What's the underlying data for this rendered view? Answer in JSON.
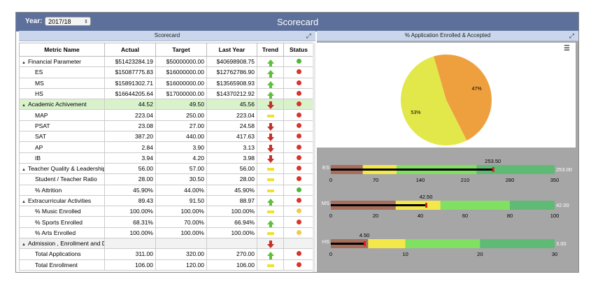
{
  "header": {
    "year_label": "Year:",
    "year_value": "2017/18",
    "title": "Scorecard"
  },
  "left_panel": {
    "title": "Scorecard"
  },
  "right_panel": {
    "title": "% Application Enrolled & Accepted"
  },
  "table": {
    "columns": [
      "Metric Name",
      "Actual",
      "Target",
      "Last Year",
      "Trend",
      "Status"
    ],
    "rows": [
      {
        "name": "Financial Parameter",
        "group": true,
        "actual": "$51423284.19",
        "target": "$50000000.00",
        "last": "$40698908.75",
        "trend": "up",
        "status": "green"
      },
      {
        "name": "ES",
        "actual": "$15087775.83",
        "target": "$16000000.00",
        "last": "$12762786.90",
        "trend": "up",
        "status": "red"
      },
      {
        "name": "MS",
        "actual": "$15891302.71",
        "target": "$16000000.00",
        "last": "$13565908.93",
        "trend": "up",
        "status": "red"
      },
      {
        "name": "HS",
        "actual": "$16644205.64",
        "target": "$17000000.00",
        "last": "$14370212.92",
        "trend": "up",
        "status": "red"
      },
      {
        "name": "Academic Achivement",
        "group": true,
        "highlight": true,
        "actual": "44.52",
        "target": "49.50",
        "last": "45.56",
        "trend": "down",
        "status": "red"
      },
      {
        "name": "MAP",
        "actual": "223.04",
        "target": "250.00",
        "last": "223.04",
        "trend": "flat",
        "status": "red"
      },
      {
        "name": "PSAT",
        "actual": "23.08",
        "target": "27.00",
        "last": "24.58",
        "trend": "down",
        "status": "red"
      },
      {
        "name": "SAT",
        "actual": "387.20",
        "target": "440.00",
        "last": "417.63",
        "trend": "down",
        "status": "red"
      },
      {
        "name": "AP",
        "actual": "2.84",
        "target": "3.90",
        "last": "3.13",
        "trend": "down",
        "status": "red"
      },
      {
        "name": "IB",
        "actual": "3.94",
        "target": "4.20",
        "last": "3.98",
        "trend": "down",
        "status": "red"
      },
      {
        "name": "Teacher Quality & Leadership",
        "group": true,
        "actual": "56.00",
        "target": "57.00",
        "last": "56.00",
        "trend": "flat",
        "status": "red"
      },
      {
        "name": "Student / Teacher Ratio",
        "actual": "28.00",
        "target": "30.50",
        "last": "28.00",
        "trend": "flat",
        "status": "red"
      },
      {
        "name": "% Attrition",
        "actual": "45.90%",
        "target": "44.00%",
        "last": "45.90%",
        "trend": "flat",
        "status": "green"
      },
      {
        "name": "Extracurricular Activities",
        "group": true,
        "actual": "89.43",
        "target": "91.50",
        "last": "88.97",
        "trend": "up",
        "status": "red"
      },
      {
        "name": "% Music Enrolled",
        "actual": "100.00%",
        "target": "100.00%",
        "last": "100.00%",
        "trend": "flat",
        "status": "yellow"
      },
      {
        "name": "% Sports Enrolled",
        "actual": "68.31%",
        "target": "70.00%",
        "last": "66.94%",
        "trend": "up",
        "status": "red"
      },
      {
        "name": "% Arts Enrolled",
        "actual": "100.00%",
        "target": "100.00%",
        "last": "100.00%",
        "trend": "flat",
        "status": "yellow"
      },
      {
        "name": "Admission , Enrollment and D",
        "group": true,
        "grey": true,
        "actual": "",
        "target": "",
        "last": "",
        "trend": "down",
        "status": ""
      },
      {
        "name": "Total Applications",
        "actual": "311.00",
        "target": "320.00",
        "last": "270.00",
        "trend": "up",
        "status": "red"
      },
      {
        "name": "Total Enrollment",
        "actual": "106.00",
        "target": "120.00",
        "last": "106.00",
        "trend": "flat",
        "status": "red"
      }
    ]
  },
  "chart_data": [
    {
      "type": "pie",
      "title": "% Application Enrolled & Accepted",
      "slices": [
        {
          "label": "47%",
          "value": 47,
          "color": "#efa03e"
        },
        {
          "label": "53%",
          "value": 53,
          "color": "#e2e84a"
        }
      ]
    },
    {
      "type": "bullet",
      "bars": [
        {
          "label": "ES",
          "max": 350,
          "ticks": [
            "0",
            "70",
            "140",
            "210",
            "280",
            "350"
          ],
          "value": 253.5,
          "value_label": "253.50",
          "target_label": "253.00",
          "ranges": [
            {
              "to": 50,
              "color": "#a86e5c"
            },
            {
              "to": 103,
              "color": "#f3e84a"
            },
            {
              "to": 228,
              "color": "#7fe061"
            },
            {
              "to": 350,
              "color": "#5fba76"
            }
          ]
        },
        {
          "label": "MS",
          "max": 100,
          "ticks": [
            "0",
            "20",
            "40",
            "60",
            "80",
            "100"
          ],
          "value": 42.5,
          "value_label": "42.50",
          "target_label": "42.00",
          "ranges": [
            {
              "to": 29,
              "color": "#a86e5c"
            },
            {
              "to": 49,
              "color": "#f3e84a"
            },
            {
              "to": 80,
              "color": "#7fe061"
            },
            {
              "to": 100,
              "color": "#5fba76"
            }
          ]
        },
        {
          "label": "HS",
          "max": 30,
          "ticks": [
            "0",
            "10",
            "20",
            "30"
          ],
          "value": 4.5,
          "value_label": "4.50",
          "target_label": "3.00",
          "ranges": [
            {
              "to": 5,
              "color": "#a86e5c"
            },
            {
              "to": 10,
              "color": "#f3e84a"
            },
            {
              "to": 20,
              "color": "#7fe061"
            },
            {
              "to": 30,
              "color": "#5fba76"
            }
          ]
        }
      ]
    }
  ],
  "colors": {
    "header": "#5d6f9b",
    "panel_head": "#c9d6ec",
    "green": "#4fb83a",
    "red": "#d9342b",
    "yellow": "#f2c94c"
  }
}
